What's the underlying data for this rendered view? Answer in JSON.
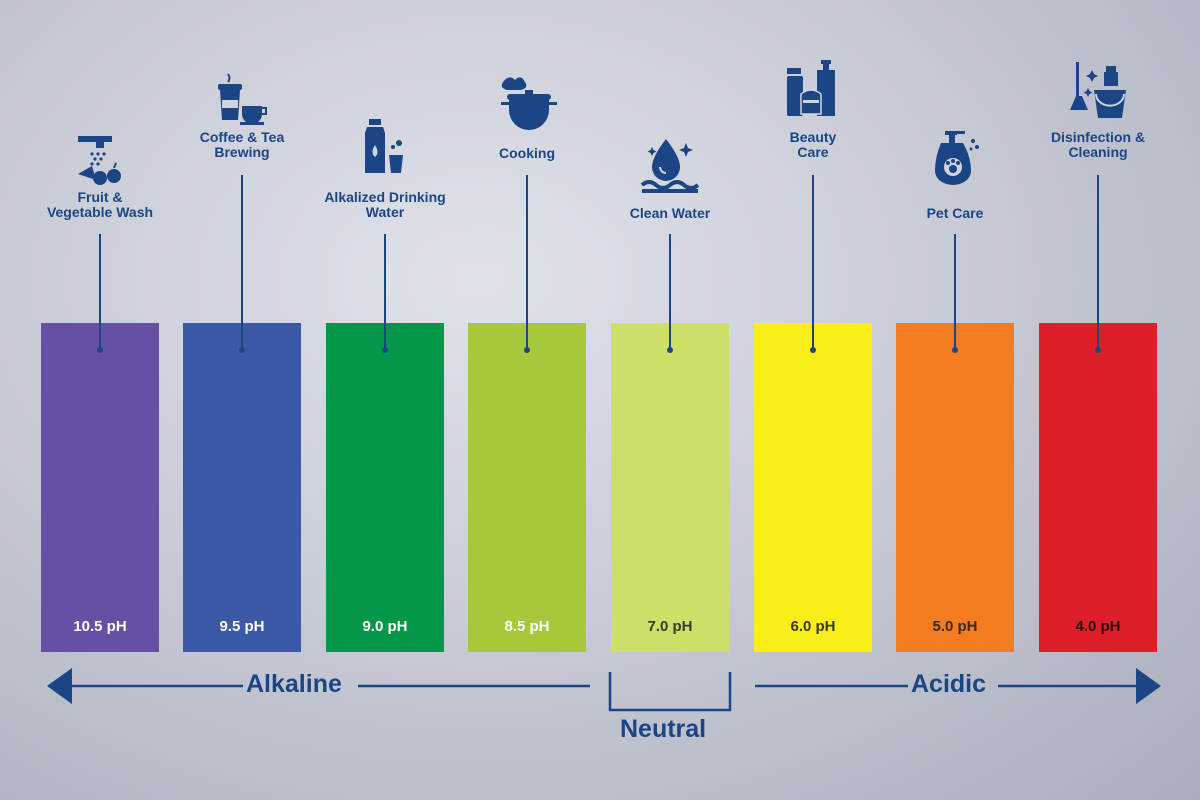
{
  "columns": [
    {
      "label": "Fruit &\nVegetable Wash",
      "ph": "10.5 pH",
      "color": "#6550a3",
      "ph_color": "#ffffff",
      "icon": "faucet-fruit-icon"
    },
    {
      "label": "Coffee & Tea\nBrewing",
      "ph": "9.5 pH",
      "color": "#3e58a8",
      "ph_color": "#ffffff",
      "icon": "coffee-cup-icon"
    },
    {
      "label": "Alkalized Drinking\nWater",
      "ph": "9.0 pH",
      "color": "#039749",
      "ph_color": "#ffffff",
      "icon": "water-bottle-icon"
    },
    {
      "label": "Cooking",
      "ph": "8.5 pH",
      "color": "#a6c83b",
      "ph_color": "#ffffff",
      "icon": "cooking-pot-icon"
    },
    {
      "label": "Clean Water",
      "ph": "7.0 pH",
      "color": "#cddf67",
      "ph_color": "#3a3a2a",
      "icon": "water-drop-icon"
    },
    {
      "label": "Beauty\nCare",
      "ph": "6.0 pH",
      "color": "#fbed18",
      "ph_color": "#3a3a2a",
      "icon": "cosmetics-icon"
    },
    {
      "label": "Pet Care",
      "ph": "5.0 pH",
      "color": "#f37c20",
      "ph_color": "#3a2a20",
      "icon": "pet-shampoo-icon"
    },
    {
      "label": "Disinfection &\nCleaning",
      "ph": "4.0 pH",
      "color": "#dc1f28",
      "ph_color": "#2a1010",
      "icon": "cleaning-supplies-icon"
    }
  ],
  "scale": {
    "alkaline": "Alkaline",
    "neutral": "Neutral",
    "acidic": "Acidic"
  },
  "accent_color": "#1c4585"
}
